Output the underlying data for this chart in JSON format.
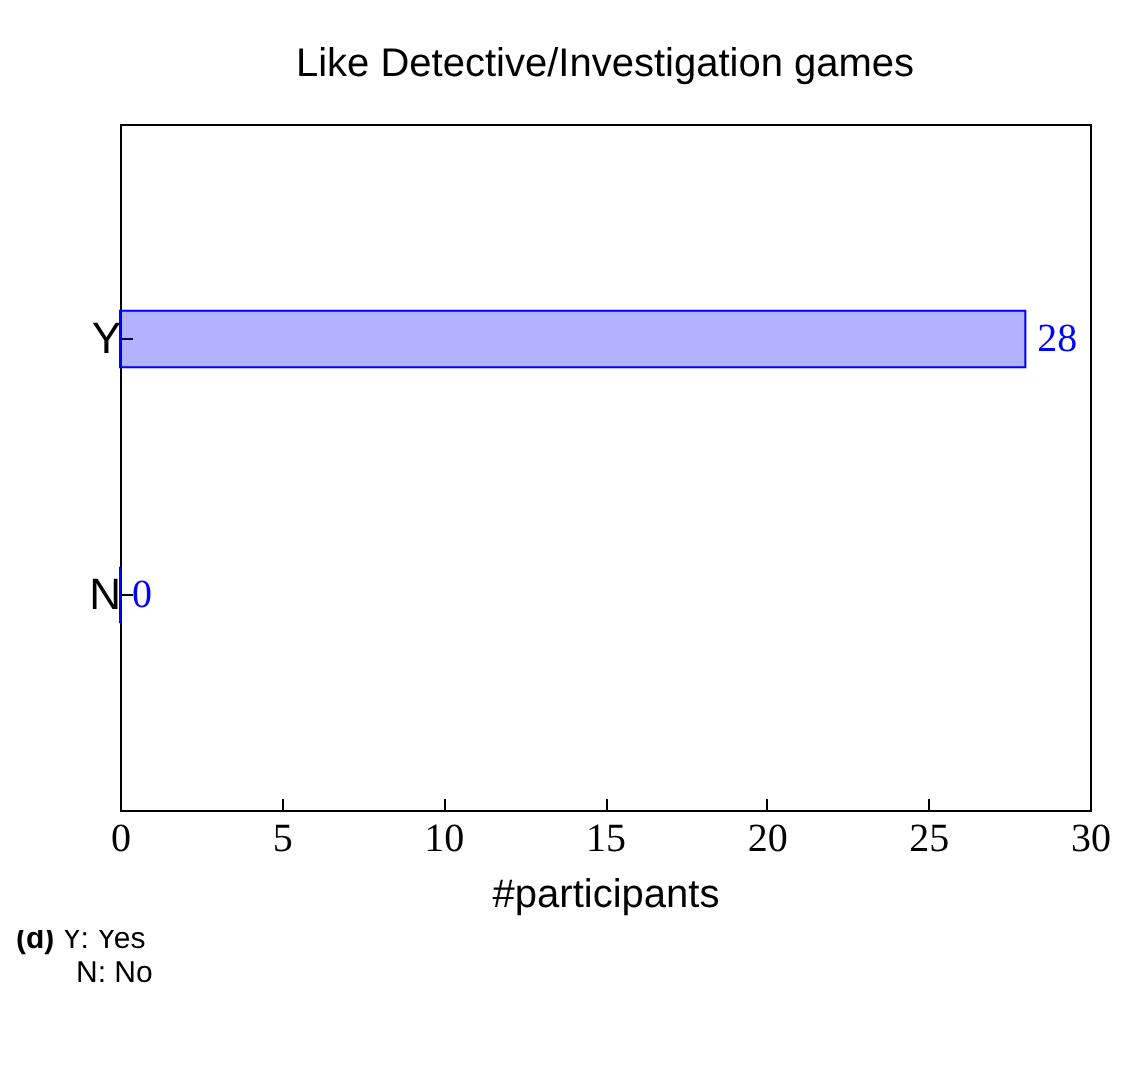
{
  "chart_data": {
    "type": "bar",
    "orientation": "horizontal",
    "title": "Like Detective/Investigation games",
    "xlabel": "#participants",
    "categories": [
      "Y",
      "N"
    ],
    "series": [
      {
        "color": "#0000ff",
        "values": [
          28,
          0
        ]
      }
    ],
    "xlim": [
      0,
      30
    ],
    "xticks": [
      0,
      5,
      10,
      15,
      20,
      25,
      30
    ],
    "data_labels": true,
    "grid": false,
    "annotations": [
      "(d) Y: Yes",
      "N: No"
    ]
  }
}
